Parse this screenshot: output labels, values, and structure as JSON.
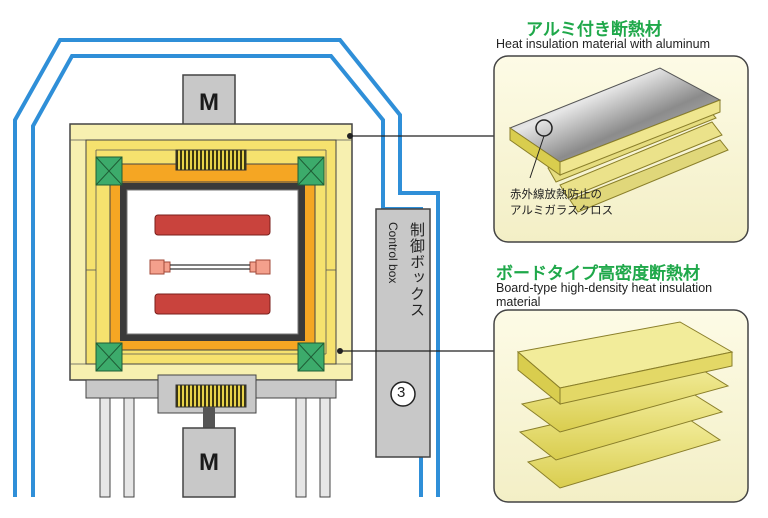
{
  "motors": {
    "top_label": "M",
    "bottom_label": "M"
  },
  "control_box": {
    "label_jp": "制御ボックス",
    "label_en": "Control box",
    "number": "③"
  },
  "aluminum_insulation": {
    "title_jp": "アルミ付き断熱材",
    "title_en": "Heat insulation material with aluminum",
    "callout_line1": "赤外線放熱防止の",
    "callout_line2": "アルミガラスクロス"
  },
  "board_insulation": {
    "title_jp": "ボードタイプ高密度断熱材",
    "title_en_line1": "Board-type high-density heat insulation",
    "title_en_line2": "material"
  },
  "colors": {
    "duct_blue": "#2f8fd8",
    "outer_insulation": "#f7f0b0",
    "board_layer": "#f6e26e",
    "hot_orange": "#f5a623",
    "corner_green": "#3cab6b",
    "heater_red": "#c9433d",
    "motor_gray": "#c8c8c8",
    "title_green": "#1fa84a"
  }
}
